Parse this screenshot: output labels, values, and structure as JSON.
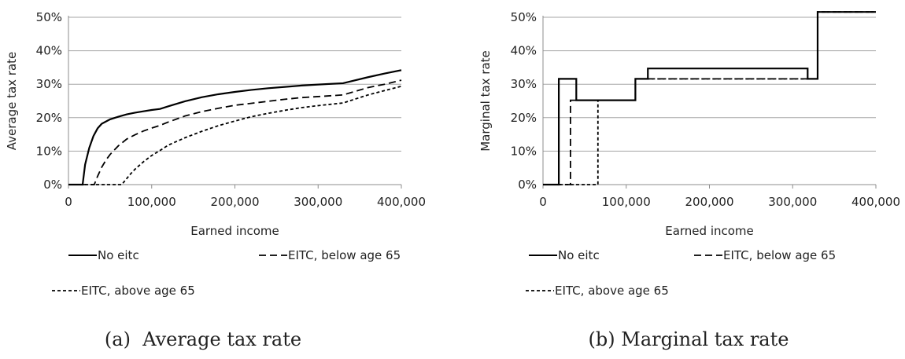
{
  "chart_data": [
    {
      "type": "line",
      "caption": "(a)  Average tax rate",
      "xlabel": "Earned income",
      "ylabel": "Average tax rate",
      "xlim": [
        0,
        400000
      ],
      "ylim": [
        0,
        0.5
      ],
      "x_ticks": [
        0,
        100000,
        200000,
        300000,
        400000
      ],
      "x_tick_labels": [
        "0",
        "100,000",
        "200,000",
        "300,000",
        "400,000"
      ],
      "y_ticks": [
        0,
        0.1,
        0.2,
        0.3,
        0.4,
        0.5
      ],
      "y_tick_labels": [
        "0%",
        "10%",
        "20%",
        "30%",
        "40%",
        "50%"
      ],
      "grid": "horizontal",
      "legend_position": "bottom",
      "series": [
        {
          "name": "No eitc",
          "style": "solid",
          "points": [
            [
              0,
              0
            ],
            [
              17000,
              0
            ],
            [
              20000,
              0.06
            ],
            [
              25000,
              0.11
            ],
            [
              30000,
              0.145
            ],
            [
              35000,
              0.168
            ],
            [
              40000,
              0.182
            ],
            [
              50000,
              0.195
            ],
            [
              60000,
              0.203
            ],
            [
              70000,
              0.21
            ],
            [
              80000,
              0.215
            ],
            [
              90000,
              0.219
            ],
            [
              100000,
              0.223
            ],
            [
              110000,
              0.226
            ],
            [
              120000,
              0.234
            ],
            [
              140000,
              0.249
            ],
            [
              160000,
              0.261
            ],
            [
              180000,
              0.27
            ],
            [
              200000,
              0.277
            ],
            [
              220000,
              0.283
            ],
            [
              240000,
              0.288
            ],
            [
              260000,
              0.292
            ],
            [
              280000,
              0.296
            ],
            [
              300000,
              0.299
            ],
            [
              330000,
              0.303
            ],
            [
              360000,
              0.321
            ],
            [
              380000,
              0.332
            ],
            [
              400000,
              0.342
            ]
          ]
        },
        {
          "name": "EITC, below age 65",
          "style": "dashed",
          "points": [
            [
              0,
              0
            ],
            [
              31000,
              0
            ],
            [
              35000,
              0.025
            ],
            [
              40000,
              0.052
            ],
            [
              45000,
              0.073
            ],
            [
              50000,
              0.09
            ],
            [
              55000,
              0.103
            ],
            [
              60000,
              0.116
            ],
            [
              70000,
              0.136
            ],
            [
              80000,
              0.149
            ],
            [
              90000,
              0.16
            ],
            [
              100000,
              0.169
            ],
            [
              110000,
              0.177
            ],
            [
              120000,
              0.187
            ],
            [
              140000,
              0.205
            ],
            [
              160000,
              0.218
            ],
            [
              180000,
              0.228
            ],
            [
              200000,
              0.237
            ],
            [
              220000,
              0.243
            ],
            [
              240000,
              0.249
            ],
            [
              260000,
              0.255
            ],
            [
              280000,
              0.26
            ],
            [
              300000,
              0.263
            ],
            [
              330000,
              0.268
            ],
            [
              360000,
              0.29
            ],
            [
              380000,
              0.3
            ],
            [
              400000,
              0.312
            ]
          ]
        },
        {
          "name": "EITC, above age 65",
          "style": "dotted",
          "points": [
            [
              0,
              0
            ],
            [
              64000,
              0
            ],
            [
              70000,
              0.018
            ],
            [
              75000,
              0.033
            ],
            [
              80000,
              0.046
            ],
            [
              90000,
              0.068
            ],
            [
              100000,
              0.087
            ],
            [
              110000,
              0.102
            ],
            [
              120000,
              0.118
            ],
            [
              140000,
              0.14
            ],
            [
              160000,
              0.159
            ],
            [
              180000,
              0.176
            ],
            [
              200000,
              0.19
            ],
            [
              220000,
              0.203
            ],
            [
              240000,
              0.213
            ],
            [
              260000,
              0.222
            ],
            [
              280000,
              0.23
            ],
            [
              300000,
              0.236
            ],
            [
              330000,
              0.244
            ],
            [
              360000,
              0.268
            ],
            [
              380000,
              0.281
            ],
            [
              400000,
              0.294
            ]
          ]
        }
      ]
    },
    {
      "type": "line",
      "caption": "(b) Marginal tax rate",
      "xlabel": "Earned income",
      "ylabel": "Marginal tax rate",
      "xlim": [
        0,
        400000
      ],
      "ylim": [
        0,
        0.5
      ],
      "x_ticks": [
        0,
        100000,
        200000,
        300000,
        400000
      ],
      "x_tick_labels": [
        "0",
        "100,000",
        "200,000",
        "300,000",
        "400,000"
      ],
      "y_ticks": [
        0,
        0.1,
        0.2,
        0.3,
        0.4,
        0.5
      ],
      "y_tick_labels": [
        "0%",
        "10%",
        "20%",
        "30%",
        "40%",
        "50%"
      ],
      "grid": "horizontal",
      "legend_position": "bottom",
      "series": [
        {
          "name": "No eitc",
          "style": "solid",
          "points": [
            [
              0,
              0
            ],
            [
              19000,
              0
            ],
            [
              19000,
              0.316
            ],
            [
              40000,
              0.316
            ],
            [
              40000,
              0.252
            ],
            [
              111000,
              0.252
            ],
            [
              111000,
              0.316
            ],
            [
              126000,
              0.316
            ],
            [
              126000,
              0.347
            ],
            [
              318000,
              0.347
            ],
            [
              318000,
              0.316
            ],
            [
              330000,
              0.316
            ],
            [
              330000,
              0.516
            ],
            [
              400000,
              0.516
            ]
          ]
        },
        {
          "name": "EITC, below age 65",
          "style": "dashed",
          "points": [
            [
              0,
              0
            ],
            [
              33000,
              0
            ],
            [
              33000,
              0.252
            ],
            [
              111000,
              0.252
            ],
            [
              111000,
              0.316
            ],
            [
              330000,
              0.316
            ],
            [
              330000,
              0.516
            ],
            [
              400000,
              0.516
            ]
          ]
        },
        {
          "name": "EITC, above age 65",
          "style": "dotted",
          "points": [
            [
              0,
              0
            ],
            [
              66000,
              0
            ],
            [
              66000,
              0.252
            ],
            [
              111000,
              0.252
            ],
            [
              111000,
              0.316
            ],
            [
              330000,
              0.316
            ],
            [
              330000,
              0.516
            ],
            [
              400000,
              0.516
            ]
          ]
        }
      ]
    }
  ]
}
